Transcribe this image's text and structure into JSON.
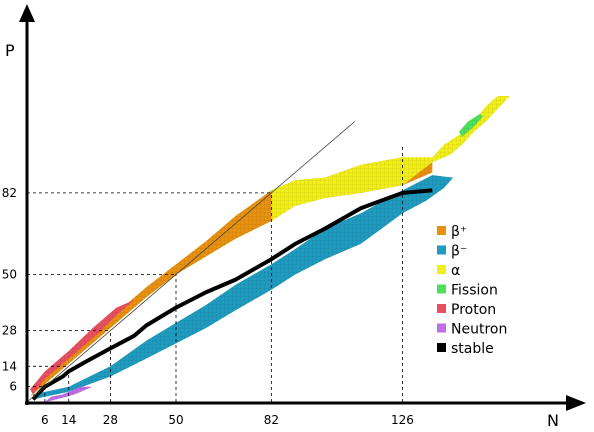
{
  "chart_data": {
    "type": "diagram",
    "xlabel": "N",
    "ylabel": "P",
    "x_ticks": [
      6,
      14,
      28,
      50,
      82,
      126
    ],
    "y_ticks": [
      6,
      14,
      28,
      50,
      82
    ],
    "xlim": [
      0,
      180
    ],
    "ylim": [
      0,
      120
    ],
    "reference_line": {
      "label": "",
      "from": [
        0,
        0
      ],
      "to": [
        110,
        110
      ]
    },
    "legend": [
      {
        "key": "beta_plus",
        "label": "β⁺",
        "color": "#e8910f"
      },
      {
        "key": "beta_minus",
        "label": "β⁻",
        "color": "#1f9bbf"
      },
      {
        "key": "alpha",
        "label": "α",
        "color": "#f2ee1a"
      },
      {
        "key": "fission",
        "label": "Fission",
        "color": "#4ee05a"
      },
      {
        "key": "proton",
        "label": "Proton",
        "color": "#e8505f"
      },
      {
        "key": "neutron",
        "label": "Neutron",
        "color": "#c06de6"
      },
      {
        "key": "stable",
        "label": "stable",
        "color": "#000000"
      }
    ],
    "regions": [
      {
        "decay": "beta_minus",
        "polygon": [
          [
            2,
            1
          ],
          [
            14,
            4
          ],
          [
            28,
            10
          ],
          [
            40,
            17
          ],
          [
            50,
            23
          ],
          [
            60,
            29
          ],
          [
            70,
            36
          ],
          [
            82,
            44
          ],
          [
            90,
            50
          ],
          [
            100,
            56
          ],
          [
            112,
            62
          ],
          [
            126,
            74
          ],
          [
            134,
            79
          ],
          [
            140,
            84
          ],
          [
            143,
            88
          ],
          [
            136,
            89
          ],
          [
            126,
            83
          ],
          [
            112,
            74
          ],
          [
            100,
            68
          ],
          [
            90,
            60
          ],
          [
            82,
            54
          ],
          [
            70,
            46
          ],
          [
            60,
            38
          ],
          [
            50,
            31
          ],
          [
            40,
            24
          ],
          [
            28,
            14
          ],
          [
            14,
            6
          ],
          [
            2,
            3
          ]
        ]
      },
      {
        "decay": "beta_plus",
        "polygon": [
          [
            1,
            2
          ],
          [
            6,
            7
          ],
          [
            14,
            15
          ],
          [
            28,
            29
          ],
          [
            40,
            41
          ],
          [
            50,
            50
          ],
          [
            60,
            57
          ],
          [
            70,
            64
          ],
          [
            82,
            71
          ],
          [
            90,
            77
          ],
          [
            100,
            80
          ],
          [
            112,
            82
          ],
          [
            126,
            85
          ],
          [
            136,
            90
          ],
          [
            136,
            94
          ],
          [
            126,
            96
          ],
          [
            112,
            93
          ],
          [
            100,
            88
          ],
          [
            90,
            87
          ],
          [
            82,
            83
          ],
          [
            70,
            73
          ],
          [
            60,
            63
          ],
          [
            50,
            54
          ],
          [
            40,
            45
          ],
          [
            28,
            33
          ],
          [
            14,
            18
          ],
          [
            6,
            10
          ]
        ]
      },
      {
        "decay": "alpha",
        "polygon": [
          [
            82,
            83
          ],
          [
            90,
            87
          ],
          [
            100,
            88
          ],
          [
            112,
            93
          ],
          [
            126,
            96
          ],
          [
            136,
            96
          ],
          [
            140,
            101
          ],
          [
            148,
            107
          ],
          [
            150,
            110
          ],
          [
            152,
            113
          ],
          [
            154,
            116
          ],
          [
            156,
            118
          ],
          [
            158,
            120
          ],
          [
            162,
            120
          ],
          [
            158,
            115
          ],
          [
            154,
            110
          ],
          [
            150,
            106
          ],
          [
            146,
            101
          ],
          [
            142,
            97
          ],
          [
            136,
            94
          ],
          [
            126,
            85
          ],
          [
            112,
            82
          ],
          [
            100,
            80
          ],
          [
            90,
            77
          ],
          [
            82,
            71
          ]
        ]
      },
      {
        "decay": "fission",
        "polygon": [
          [
            146,
            104
          ],
          [
            150,
            108
          ],
          [
            153,
            112
          ],
          [
            152,
            113
          ],
          [
            148,
            110
          ],
          [
            145,
            106
          ]
        ]
      },
      {
        "decay": "proton",
        "polygon": [
          [
            2,
            3
          ],
          [
            6,
            9
          ],
          [
            14,
            17
          ],
          [
            24,
            27
          ],
          [
            30,
            34
          ],
          [
            36,
            40
          ],
          [
            30,
            37
          ],
          [
            22,
            29
          ],
          [
            14,
            20
          ],
          [
            6,
            12
          ],
          [
            1,
            5
          ]
        ]
      },
      {
        "decay": "neutron",
        "polygon": [
          [
            6,
            0
          ],
          [
            10,
            1
          ],
          [
            16,
            3
          ],
          [
            22,
            6
          ],
          [
            18,
            6
          ],
          [
            12,
            3
          ],
          [
            8,
            2
          ]
        ]
      }
    ],
    "stable_line": [
      [
        2,
        1
      ],
      [
        6,
        6
      ],
      [
        12,
        10
      ],
      [
        14,
        12
      ],
      [
        20,
        16
      ],
      [
        28,
        21
      ],
      [
        36,
        26
      ],
      [
        40,
        30
      ],
      [
        50,
        37
      ],
      [
        60,
        43
      ],
      [
        70,
        48
      ],
      [
        82,
        56
      ],
      [
        90,
        62
      ],
      [
        100,
        68
      ],
      [
        112,
        76
      ],
      [
        126,
        82
      ],
      [
        136,
        83
      ]
    ]
  }
}
